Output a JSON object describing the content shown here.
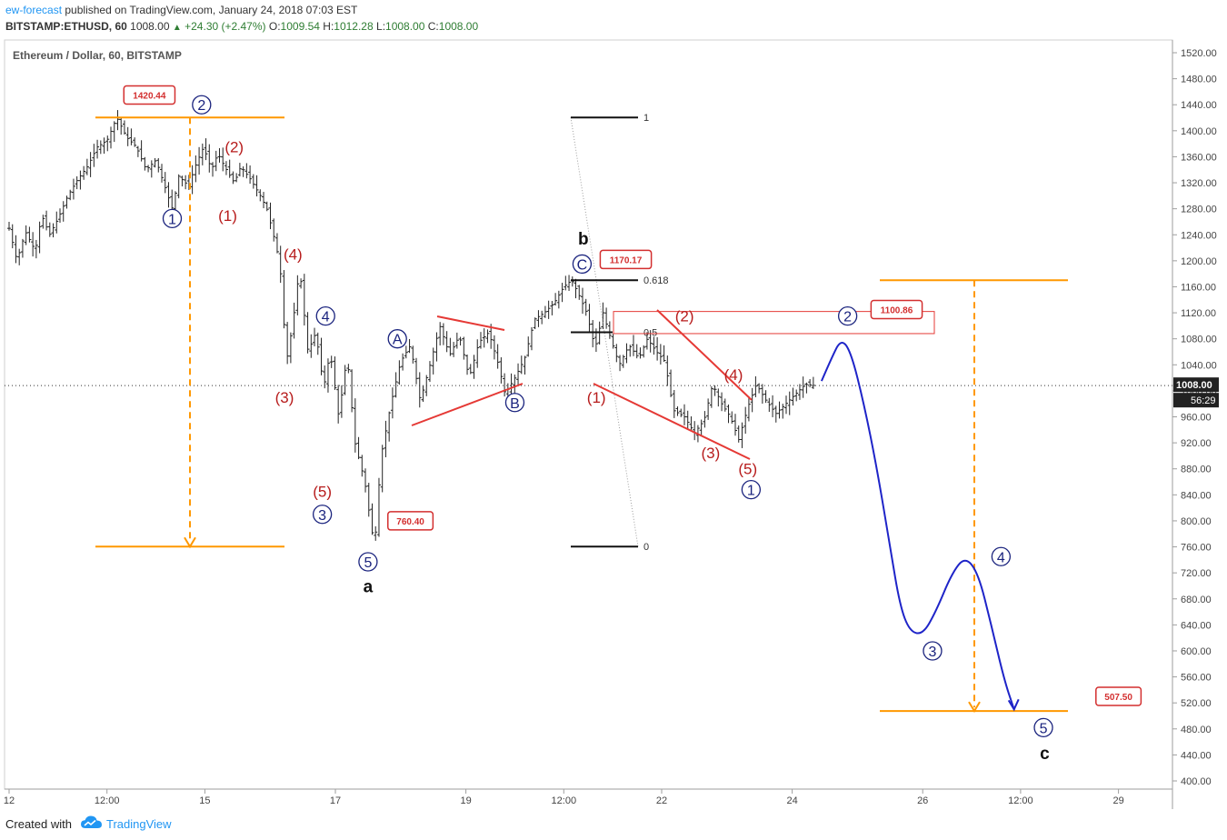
{
  "header": {
    "publisher": "ew-forecast",
    "published_text": "published on TradingView.com, January 24, 2018 07:03 EST",
    "symbol": "BITSTAMP:ETHUSD, 60",
    "last": "1008.00",
    "change": "+24.30 (+2.47%)",
    "open_label": "O:",
    "open": "1009.54",
    "high_label": "H:",
    "high": "1012.28",
    "low_label": "L:",
    "low": "1008.00",
    "close_label": "C:",
    "close": "1008.00"
  },
  "chart_title": "Ethereum / Dollar, 60, BITSTAMP",
  "footer": {
    "created_with": "Created with",
    "brand": "TradingView"
  },
  "colors": {
    "wave_blue": "#1a237e",
    "wave_red": "#b71c1c",
    "trend_red": "#e53935",
    "orange": "#ff9800",
    "projection": "#1e24c8",
    "price_tag": "#d32f2f"
  },
  "chart_data": {
    "type": "bar",
    "y_axis": {
      "min": 400,
      "max": 1520,
      "ticks": [
        400,
        440,
        480,
        520,
        560,
        600,
        640,
        680,
        720,
        760,
        800,
        840,
        880,
        920,
        960,
        1000,
        1040,
        1080,
        1120,
        1160,
        1200,
        1240,
        1280,
        1320,
        1360,
        1400,
        1440,
        1480,
        1520
      ],
      "decimals": 2
    },
    "x_axis": {
      "tick_labels": [
        "12",
        "12:00",
        "15",
        "17",
        "19",
        "12:00",
        "22",
        "24",
        "26",
        "12:00",
        "29"
      ],
      "x_min": 0,
      "x_max": 16.7,
      "tick_positions": [
        0,
        1.5,
        3,
        5,
        7,
        8.5,
        10,
        12,
        14,
        15.5,
        17
      ]
    },
    "current_price": {
      "value": 1008.0,
      "label": "1008.00",
      "countdown": "56:29"
    },
    "price_path": [
      [
        0,
        1250
      ],
      [
        0.12,
        1200
      ],
      [
        0.25,
        1245
      ],
      [
        0.4,
        1215
      ],
      [
        0.5,
        1270
      ],
      [
        0.62,
        1240
      ],
      [
        0.75,
        1265
      ],
      [
        0.9,
        1300
      ],
      [
        1.05,
        1325
      ],
      [
        1.2,
        1345
      ],
      [
        1.35,
        1375
      ],
      [
        1.5,
        1385
      ],
      [
        1.65,
        1420.44
      ],
      [
        1.8,
        1390
      ],
      [
        1.95,
        1375
      ],
      [
        2.1,
        1340
      ],
      [
        2.25,
        1355
      ],
      [
        2.4,
        1310
      ],
      [
        2.5,
        1280
      ],
      [
        2.6,
        1330
      ],
      [
        2.75,
        1315
      ],
      [
        2.85,
        1345
      ],
      [
        2.98,
        1375
      ],
      [
        3.1,
        1340
      ],
      [
        3.2,
        1365
      ],
      [
        3.3,
        1345
      ],
      [
        3.45,
        1320
      ],
      [
        3.55,
        1345
      ],
      [
        3.7,
        1325
      ],
      [
        3.85,
        1300
      ],
      [
        3.95,
        1280
      ],
      [
        4.05,
        1240
      ],
      [
        4.15,
        1195
      ],
      [
        4.25,
        1045
      ],
      [
        4.35,
        1105
      ],
      [
        4.45,
        1190
      ],
      [
        4.58,
        1060
      ],
      [
        4.7,
        1090
      ],
      [
        4.82,
        1005
      ],
      [
        4.92,
        1060
      ],
      [
        5.05,
        960
      ],
      [
        5.18,
        1055
      ],
      [
        5.3,
        920
      ],
      [
        5.45,
        860
      ],
      [
        5.55,
        790
      ],
      [
        5.6,
        760.4
      ],
      [
        5.7,
        900
      ],
      [
        5.85,
        980
      ],
      [
        6.0,
        1045
      ],
      [
        6.15,
        1070
      ],
      [
        6.3,
        985
      ],
      [
        6.45,
        1040
      ],
      [
        6.6,
        1100
      ],
      [
        6.75,
        1055
      ],
      [
        6.9,
        1085
      ],
      [
        7.05,
        1020
      ],
      [
        7.2,
        1075
      ],
      [
        7.35,
        1090
      ],
      [
        7.5,
        1040
      ],
      [
        7.6,
        995
      ],
      [
        7.75,
        1020
      ],
      [
        7.9,
        1050
      ],
      [
        8.05,
        1110
      ],
      [
        8.2,
        1120
      ],
      [
        8.35,
        1135
      ],
      [
        8.5,
        1160
      ],
      [
        8.62,
        1170.17
      ],
      [
        8.72,
        1150
      ],
      [
        8.85,
        1120
      ],
      [
        8.98,
        1065
      ],
      [
        9.1,
        1120
      ],
      [
        9.22,
        1080
      ],
      [
        9.35,
        1040
      ],
      [
        9.5,
        1070
      ],
      [
        9.65,
        1050
      ],
      [
        9.78,
        1080
      ],
      [
        9.92,
        1060
      ],
      [
        10.05,
        1045
      ],
      [
        10.18,
        970
      ],
      [
        10.35,
        960
      ],
      [
        10.5,
        935
      ],
      [
        10.65,
        955
      ],
      [
        10.78,
        1010
      ],
      [
        10.92,
        980
      ],
      [
        11.05,
        960
      ],
      [
        11.18,
        925
      ],
      [
        11.32,
        975
      ],
      [
        11.45,
        1010
      ],
      [
        11.6,
        985
      ],
      [
        11.75,
        965
      ],
      [
        11.9,
        980
      ],
      [
        12.05,
        995
      ],
      [
        12.2,
        1010
      ],
      [
        12.35,
        1008
      ]
    ],
    "projection": [
      [
        12.45,
        1015
      ],
      [
        12.6,
        1050
      ],
      [
        12.75,
        1080
      ],
      [
        12.9,
        1060
      ],
      [
        13.1,
        980
      ],
      [
        13.3,
        880
      ],
      [
        13.5,
        760
      ],
      [
        13.65,
        670
      ],
      [
        13.8,
        630
      ],
      [
        14.0,
        625
      ],
      [
        14.2,
        660
      ],
      [
        14.45,
        720
      ],
      [
        14.65,
        745
      ],
      [
        14.85,
        720
      ],
      [
        15.05,
        640
      ],
      [
        15.25,
        555
      ],
      [
        15.4,
        510
      ]
    ],
    "wave_labels": [
      {
        "text": "1",
        "x": 2.5,
        "y": 1265,
        "style": "circle",
        "color": "blue"
      },
      {
        "text": "2",
        "x": 2.95,
        "y": 1440,
        "style": "circle",
        "color": "blue"
      },
      {
        "text": "(1)",
        "x": 3.35,
        "y": 1270,
        "style": "paren",
        "color": "red"
      },
      {
        "text": "(2)",
        "x": 3.45,
        "y": 1375,
        "style": "paren",
        "color": "red"
      },
      {
        "text": "(4)",
        "x": 4.35,
        "y": 1210,
        "style": "paren",
        "color": "red"
      },
      {
        "text": "(3)",
        "x": 4.22,
        "y": 990,
        "style": "paren",
        "color": "red"
      },
      {
        "text": "4",
        "x": 4.85,
        "y": 1115,
        "style": "circle",
        "color": "blue"
      },
      {
        "text": "(5)",
        "x": 4.8,
        "y": 845,
        "style": "paren",
        "color": "red"
      },
      {
        "text": "3",
        "x": 4.8,
        "y": 810,
        "style": "circle",
        "color": "blue"
      },
      {
        "text": "5",
        "x": 5.5,
        "y": 737,
        "style": "circle",
        "color": "blue"
      },
      {
        "text": "a",
        "x": 5.5,
        "y": 700,
        "style": "plain",
        "color": "black"
      },
      {
        "text": "A",
        "x": 5.95,
        "y": 1080,
        "style": "circle",
        "color": "blue"
      },
      {
        "text": "B",
        "x": 7.75,
        "y": 982,
        "style": "circle",
        "color": "blue"
      },
      {
        "text": "C",
        "x": 8.78,
        "y": 1195,
        "style": "circle",
        "color": "blue"
      },
      {
        "text": "b",
        "x": 8.8,
        "y": 1235,
        "style": "plain",
        "color": "black"
      },
      {
        "text": "(1)",
        "x": 9.0,
        "y": 990,
        "style": "paren",
        "color": "red"
      },
      {
        "text": "(2)",
        "x": 10.35,
        "y": 1115,
        "style": "paren",
        "color": "red"
      },
      {
        "text": "(4)",
        "x": 11.1,
        "y": 1025,
        "style": "paren",
        "color": "red"
      },
      {
        "text": "(3)",
        "x": 10.75,
        "y": 905,
        "style": "paren",
        "color": "red"
      },
      {
        "text": "(5)",
        "x": 11.32,
        "y": 880,
        "style": "paren",
        "color": "red"
      },
      {
        "text": "1",
        "x": 11.37,
        "y": 848,
        "style": "circle",
        "color": "blue"
      },
      {
        "text": "2",
        "x": 12.85,
        "y": 1115,
        "style": "circle",
        "color": "blue"
      },
      {
        "text": "3",
        "x": 14.15,
        "y": 600,
        "style": "circle",
        "color": "blue"
      },
      {
        "text": "4",
        "x": 15.2,
        "y": 745,
        "style": "circle",
        "color": "blue"
      },
      {
        "text": "5",
        "x": 15.85,
        "y": 482,
        "style": "circle",
        "color": "blue"
      },
      {
        "text": "c",
        "x": 15.87,
        "y": 443,
        "style": "plain",
        "color": "black"
      }
    ],
    "price_tags": [
      {
        "text": "1420.44",
        "x": 2.15,
        "y": 1455
      },
      {
        "text": "760.40",
        "x": 6.15,
        "y": 800
      },
      {
        "text": "1170.17",
        "x": 9.45,
        "y": 1202
      },
      {
        "text": "1100.86",
        "x": 13.6,
        "y": 1125
      },
      {
        "text": "507.50",
        "x": 17.0,
        "y": 530
      }
    ],
    "fib_levels": [
      {
        "label": "1",
        "value": 1420.44
      },
      {
        "label": "0.618",
        "value": 1170.17
      },
      {
        "label": "0.5",
        "value": 1090
      },
      {
        "label": "0",
        "value": 760.4
      }
    ],
    "resistance_box": {
      "top": 1122,
      "bottom": 1088
    },
    "targets": {
      "upper": 1170.17,
      "lower": 507.5,
      "left_top": 1420.44,
      "left_bottom": 760.4
    }
  }
}
